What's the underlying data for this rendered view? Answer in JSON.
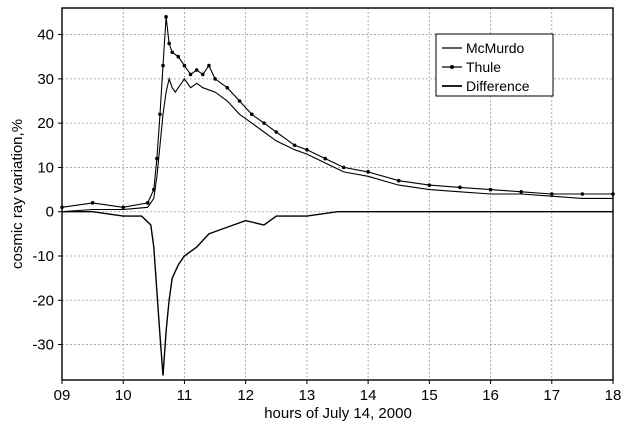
{
  "chart_data": {
    "type": "line",
    "xlabel": "hours of July 14, 2000",
    "ylabel": "cosmic ray variation,%",
    "xlim": [
      9,
      18
    ],
    "ylim": [
      -38,
      46
    ],
    "x_ticks": [
      9,
      10,
      11,
      12,
      13,
      14,
      15,
      16,
      17,
      18
    ],
    "x_tick_labels": [
      "09",
      "10",
      "11",
      "12",
      "13",
      "14",
      "15",
      "16",
      "17",
      "18"
    ],
    "y_ticks": [
      -30,
      -20,
      -10,
      0,
      10,
      20,
      30,
      40
    ],
    "y_tick_labels": [
      "-30",
      "-20",
      "-10",
      "0",
      "10",
      "20",
      "30",
      "40"
    ],
    "grid": true,
    "legend_position": "top-right",
    "series": [
      {
        "name": "McMurdo",
        "color": "#000000",
        "marker": "none",
        "x": [
          9.0,
          9.5,
          10.0,
          10.4,
          10.5,
          10.55,
          10.6,
          10.65,
          10.7,
          10.75,
          10.8,
          10.85,
          10.9,
          11.0,
          11.1,
          11.2,
          11.3,
          11.5,
          11.7,
          11.9,
          12.1,
          12.3,
          12.5,
          12.8,
          13.0,
          13.3,
          13.6,
          14.0,
          14.5,
          15.0,
          15.5,
          16.0,
          16.5,
          17.0,
          17.5,
          18.0
        ],
        "y": [
          0,
          0.5,
          0.5,
          1,
          3,
          8,
          15,
          22,
          27,
          30,
          28,
          27,
          28,
          30,
          28,
          29,
          28,
          27,
          25,
          22,
          20,
          18,
          16,
          14,
          13,
          11,
          9,
          8,
          6,
          5,
          4.5,
          4,
          4,
          3.5,
          3,
          3
        ]
      },
      {
        "name": "Thule",
        "color": "#000000",
        "marker": "dot",
        "x": [
          9.0,
          9.5,
          10.0,
          10.4,
          10.5,
          10.55,
          10.6,
          10.65,
          10.7,
          10.75,
          10.8,
          10.9,
          11.0,
          11.1,
          11.2,
          11.3,
          11.4,
          11.5,
          11.7,
          11.9,
          12.1,
          12.3,
          12.5,
          12.8,
          13.0,
          13.3,
          13.6,
          14.0,
          14.5,
          15.0,
          15.5,
          16.0,
          16.5,
          17.0,
          17.5,
          18.0
        ],
        "y": [
          1,
          2,
          1,
          2,
          5,
          12,
          22,
          33,
          44,
          38,
          36,
          35,
          33,
          31,
          32,
          31,
          33,
          30,
          28,
          25,
          22,
          20,
          18,
          15,
          14,
          12,
          10,
          9,
          7,
          6,
          5.5,
          5,
          4.5,
          4,
          4,
          4
        ]
      },
      {
        "name": "Difference",
        "color": "#000000",
        "marker": "none",
        "x": [
          9.0,
          9.5,
          10.0,
          10.3,
          10.45,
          10.5,
          10.55,
          10.6,
          10.65,
          10.7,
          10.75,
          10.8,
          10.9,
          11.0,
          11.2,
          11.4,
          11.6,
          11.8,
          12.0,
          12.3,
          12.5,
          13.0,
          13.5,
          14.0,
          14.5,
          15.0,
          15.5,
          16.0,
          16.5,
          17.0,
          17.5,
          18.0
        ],
        "y": [
          0,
          0,
          -1,
          -1,
          -3,
          -8,
          -18,
          -28,
          -37,
          -27,
          -20,
          -15,
          -12,
          -10,
          -8,
          -5,
          -4,
          -3,
          -2,
          -3,
          -1,
          -1,
          0,
          0,
          0,
          0,
          0,
          0,
          0,
          0,
          0,
          0
        ]
      }
    ]
  }
}
